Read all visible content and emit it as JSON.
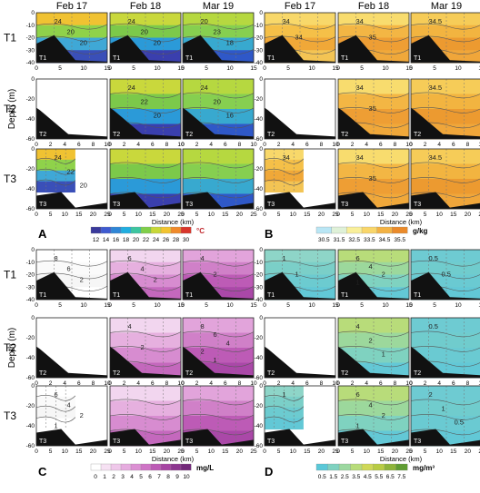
{
  "column_dates": [
    "Feb 17",
    "Feb 18",
    "Mar 19"
  ],
  "transects": [
    "T1",
    "T2",
    "T3"
  ],
  "panel_tags": [
    "T1",
    "T2",
    "T3"
  ],
  "y_axis_label": "Depth (m)",
  "x_axis_label": "Distance (km)",
  "panels": [
    {
      "letter": "A",
      "unit": "°C",
      "ticks": [
        "12",
        "14",
        "16",
        "18",
        "20",
        "22",
        "24",
        "26",
        "28",
        "30"
      ],
      "colors": [
        "#3a3a9c",
        "#3f5bd0",
        "#2f86d6",
        "#21aee0",
        "#3dc6a0",
        "#7fcf4a",
        "#c8d838",
        "#f2c430",
        "#f08a2a",
        "#d9362b"
      ]
    },
    {
      "letter": "B",
      "unit": "g/kg",
      "ticks": [
        "30.5",
        "31.5",
        "32.5",
        "33.5",
        "34.5",
        "35.5"
      ],
      "colors": [
        "#b9e6f5",
        "#dff1d8",
        "#f9ef9a",
        "#f9d66a",
        "#f3b244",
        "#ea8a2a"
      ]
    },
    {
      "letter": "C",
      "unit": "mg/L",
      "ticks": [
        "0",
        "1",
        "2",
        "3",
        "4",
        "5",
        "6",
        "7",
        "8",
        "9",
        "10"
      ],
      "colors": [
        "#ffffff",
        "#f6e1f3",
        "#efc8ea",
        "#e6acdf",
        "#dc90d3",
        "#cf74c6",
        "#bd5bb6",
        "#a645a3",
        "#8c368f",
        "#73297a"
      ]
    },
    {
      "letter": "D",
      "unit": "mg/m³",
      "ticks": [
        "0.5",
        "1.5",
        "2.5",
        "3.5",
        "4.5",
        "5.5",
        "6.5",
        "7.5"
      ],
      "colors": [
        "#5ac8d8",
        "#7fd2c0",
        "#9cd8a0",
        "#b8dc7a",
        "#cfd858",
        "#b8cc44",
        "#8eb43a",
        "#5f9c32"
      ]
    }
  ],
  "grid_x_ticks": {
    "T1": [
      "0",
      "5",
      "10",
      "15"
    ],
    "T2": [
      "0",
      "2",
      "4",
      "6",
      "8",
      "10"
    ],
    "T3": [
      "0",
      "5",
      "10",
      "15",
      "20",
      "25"
    ]
  },
  "grid_y_ticks": {
    "T1": [
      "0",
      "-10",
      "-20",
      "-30",
      "-40"
    ],
    "T2": [
      "0",
      "-20",
      "-40",
      "-60"
    ],
    "T3": [
      "0",
      "-20",
      "-40",
      "-60"
    ]
  },
  "contour_labels": {
    "A": [
      [
        "24",
        "20",
        "20"
      ],
      [
        "24",
        "20",
        "20"
      ],
      [
        "20",
        "23",
        "18"
      ],
      [
        "24",
        "22",
        "20"
      ],
      [
        "24",
        "20",
        "16"
      ],
      [
        "24",
        "22",
        "20"
      ]
    ],
    "B": [
      [
        "34",
        "34"
      ],
      [
        "34",
        "35"
      ],
      [
        "34.5"
      ],
      [
        "34",
        "35"
      ],
      [
        "34.5"
      ],
      [
        "34"
      ],
      [
        "34",
        "35"
      ],
      [
        "34.5"
      ]
    ],
    "C": [
      [
        "8",
        "6",
        "2"
      ],
      [
        "6",
        "4",
        "2"
      ],
      [
        "4",
        "2"
      ],
      [
        "4",
        "2"
      ],
      [
        "8",
        "6",
        "4",
        "2",
        "1"
      ],
      [
        "6",
        "4",
        "2",
        "1"
      ]
    ],
    "D": [
      [
        "1",
        "1"
      ],
      [
        "6",
        "4",
        "2",
        "1"
      ],
      [
        "0.5",
        "0.5"
      ],
      [
        "4",
        "2",
        "1"
      ],
      [
        "0.5"
      ],
      [
        "1"
      ],
      [
        "6",
        "4",
        "2",
        "1"
      ],
      [
        "2",
        "1",
        "0.5"
      ]
    ]
  }
}
